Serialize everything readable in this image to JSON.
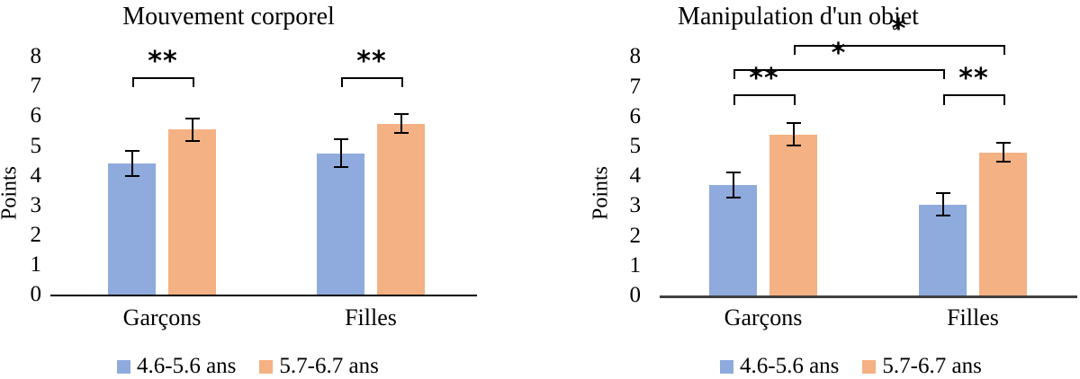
{
  "figure": {
    "background": "#ffffff"
  },
  "chart_data": [
    {
      "type": "bar",
      "title": "Mouvement corporel",
      "xlabel": "",
      "ylabel": "Points",
      "ylim": [
        0,
        8
      ],
      "yticks": [
        0,
        1,
        2,
        3,
        4,
        5,
        6,
        7,
        8
      ],
      "grid": false,
      "legend_position": "bottom",
      "categories": [
        "Garçons",
        "Filles"
      ],
      "series": [
        {
          "name": "4.6-5.6 ans",
          "color": "#8FAADC",
          "values": [
            4.4,
            4.75
          ],
          "errors": [
            0.45,
            0.5
          ]
        },
        {
          "name": "5.7-6.7 ans",
          "color": "#F4B183",
          "values": [
            5.55,
            5.75
          ],
          "errors": [
            0.4,
            0.35
          ]
        }
      ],
      "error_bar_color": "#000000",
      "axis_color": "#000000",
      "axis_thickness": 1.5,
      "significance_brackets": [
        {
          "from": {
            "group": 0,
            "series": 0
          },
          "to": {
            "group": 0,
            "series": 1
          },
          "height": 7.3,
          "drop": 0.33,
          "label": "**"
        },
        {
          "from": {
            "group": 1,
            "series": 0
          },
          "to": {
            "group": 1,
            "series": 1
          },
          "height": 7.3,
          "drop": 0.33,
          "label": "**"
        }
      ]
    },
    {
      "type": "bar",
      "title": "Manipulation d'un objet",
      "xlabel": "",
      "ylabel": "Points",
      "ylim": [
        0,
        8
      ],
      "yticks": [
        0,
        1,
        2,
        3,
        4,
        5,
        6,
        7,
        8
      ],
      "grid": false,
      "legend_position": "bottom",
      "categories": [
        "Garçons",
        "Filles"
      ],
      "series": [
        {
          "name": "4.6-5.6 ans",
          "color": "#8FAADC",
          "values": [
            3.7,
            3.05
          ],
          "errors": [
            0.45,
            0.4
          ]
        },
        {
          "name": "5.7-6.7 ans",
          "color": "#F4B183",
          "values": [
            5.4,
            4.8
          ],
          "errors": [
            0.4,
            0.35
          ]
        }
      ],
      "error_bar_color": "#000000",
      "axis_color": "#404040",
      "axis_thickness": 2.5,
      "significance_brackets": [
        {
          "from": {
            "group": 0,
            "series": 0
          },
          "to": {
            "group": 0,
            "series": 1
          },
          "height": 6.75,
          "drop": 0.36,
          "label": "**"
        },
        {
          "from": {
            "group": 1,
            "series": 0
          },
          "to": {
            "group": 1,
            "series": 1
          },
          "height": 6.75,
          "drop": 0.36,
          "label": "**"
        },
        {
          "from": {
            "group": 0,
            "series": 0
          },
          "to": {
            "group": 1,
            "series": 0
          },
          "height": 7.6,
          "drop": 0.33,
          "label": "*"
        },
        {
          "from": {
            "group": 0,
            "series": 1
          },
          "to": {
            "group": 1,
            "series": 1
          },
          "height": 8.4,
          "drop": 0.33,
          "label": "*"
        }
      ]
    }
  ]
}
